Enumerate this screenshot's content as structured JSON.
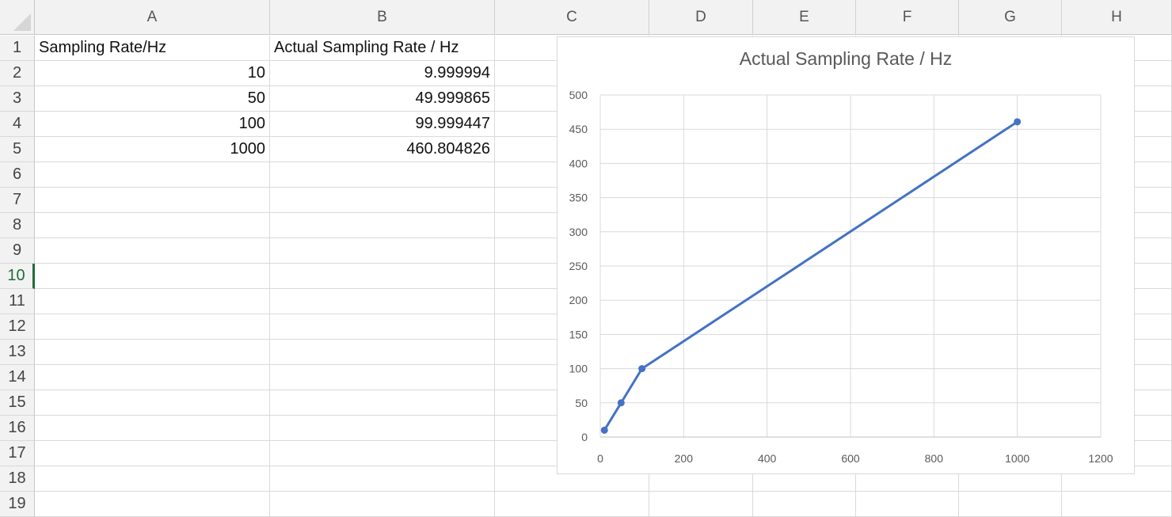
{
  "sheet": {
    "columns": [
      "A",
      "B",
      "C",
      "D",
      "E",
      "F",
      "G",
      "H"
    ],
    "rows": [
      "1",
      "2",
      "3",
      "4",
      "5",
      "6",
      "7",
      "8",
      "9",
      "10",
      "11",
      "12",
      "13",
      "14",
      "15",
      "16",
      "17",
      "18",
      "19"
    ],
    "active_row": "10",
    "header_row": {
      "a": "Sampling Rate/Hz",
      "b": "Actual Sampling Rate / Hz"
    },
    "data_rows": [
      {
        "a": "10",
        "b": "9.999994"
      },
      {
        "a": "50",
        "b": "49.999865"
      },
      {
        "a": "100",
        "b": "99.999447"
      },
      {
        "a": "1000",
        "b": "460.804826"
      }
    ]
  },
  "chart_data": {
    "type": "scatter",
    "title": "Actual Sampling Rate / Hz",
    "xlabel": "",
    "ylabel": "",
    "series": [
      {
        "x": [
          10,
          50,
          100,
          1000
        ],
        "y": [
          9.999994,
          49.999865,
          99.999447,
          460.804826
        ],
        "color": "#4472c4"
      }
    ],
    "xlim": [
      0,
      1200
    ],
    "ylim": [
      0,
      500
    ],
    "x_ticks": [
      0,
      200,
      400,
      600,
      800,
      1000,
      1200
    ],
    "y_ticks": [
      0,
      50,
      100,
      150,
      200,
      250,
      300,
      350,
      400,
      450,
      500
    ],
    "grid": true,
    "line_style": "straight lines with markers"
  }
}
